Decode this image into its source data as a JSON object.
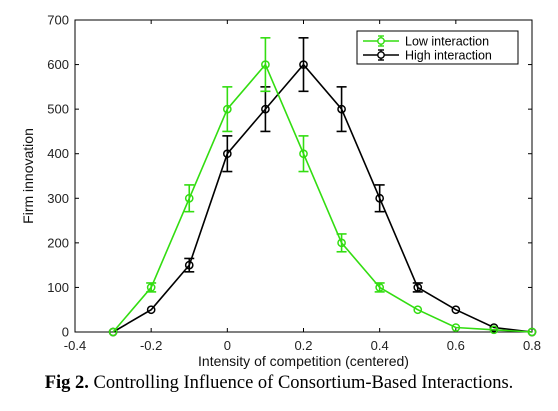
{
  "caption": {
    "label": "Fig 2.",
    "text": "Controlling Influence of Consortium-Based Interactions."
  },
  "chart_data": {
    "type": "line",
    "title": "",
    "xlabel": "Intensity of competition (centered)",
    "ylabel": "Firm innovation",
    "xlim": [
      -0.4,
      0.8
    ],
    "ylim": [
      0,
      700
    ],
    "xticks": [
      "-0.4",
      "-0.2",
      "0",
      "0.2",
      "0.4",
      "0.6",
      "0.8"
    ],
    "yticks": [
      "0",
      "100",
      "200",
      "300",
      "400",
      "500",
      "600",
      "700"
    ],
    "grid": false,
    "legend_position": "top-right",
    "series": [
      {
        "name": "Low interaction",
        "color": "#33dd11",
        "marker": "circle",
        "x": [
          -0.3,
          -0.2,
          -0.1,
          0.0,
          0.1,
          0.2,
          0.3,
          0.4,
          0.5,
          0.6,
          0.7,
          0.8
        ],
        "y": [
          0,
          100,
          300,
          500,
          600,
          400,
          200,
          100,
          50,
          10,
          5,
          0
        ],
        "error": [
          0,
          10,
          30,
          50,
          60,
          40,
          20,
          10,
          0,
          0,
          0,
          0
        ]
      },
      {
        "name": "High interaction",
        "color": "#000000",
        "marker": "circle",
        "x": [
          -0.3,
          -0.2,
          -0.1,
          0.0,
          0.1,
          0.2,
          0.3,
          0.4,
          0.5,
          0.6,
          0.7,
          0.8
        ],
        "y": [
          0,
          50,
          150,
          400,
          500,
          600,
          500,
          300,
          100,
          50,
          10,
          0
        ],
        "error": [
          0,
          0,
          15,
          40,
          50,
          60,
          50,
          30,
          10,
          0,
          0,
          0
        ]
      }
    ]
  }
}
